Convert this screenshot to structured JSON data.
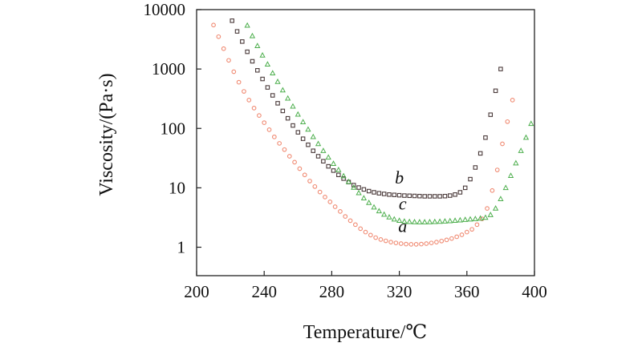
{
  "chart_data": {
    "type": "scatter",
    "xlabel": "Temperature/℃",
    "ylabel": "Viscosity/(Pa·s)",
    "x_scale": "linear",
    "y_scale": "log",
    "xlim": [
      200,
      400
    ],
    "ylim": [
      0.4,
      10000
    ],
    "x_ticks": [
      200,
      240,
      280,
      320,
      360,
      400
    ],
    "x_tick_labels": [
      "200",
      "240",
      "280",
      "320",
      "360",
      "400"
    ],
    "y_ticks": [
      1,
      10,
      100,
      1000,
      10000
    ],
    "y_tick_labels": [
      "1",
      "10",
      "100",
      "1000",
      "10000"
    ],
    "grid": false,
    "legend": "none",
    "series": [
      {
        "name": "a",
        "label": "a",
        "marker": "circle",
        "color": "#f08a72",
        "points": [
          [
            210,
            5500
          ],
          [
            213,
            3500
          ],
          [
            216,
            2200
          ],
          [
            219,
            1400
          ],
          [
            222,
            900
          ],
          [
            225,
            600
          ],
          [
            228,
            420
          ],
          [
            231,
            300
          ],
          [
            234,
            220
          ],
          [
            237,
            165
          ],
          [
            240,
            125
          ],
          [
            243,
            95
          ],
          [
            246,
            72
          ],
          [
            249,
            56
          ],
          [
            252,
            44
          ],
          [
            255,
            34
          ],
          [
            258,
            27
          ],
          [
            261,
            21
          ],
          [
            264,
            16.5
          ],
          [
            267,
            13
          ],
          [
            270,
            10.5
          ],
          [
            273,
            8.5
          ],
          [
            276,
            7
          ],
          [
            279,
            5.8
          ],
          [
            282,
            4.8
          ],
          [
            285,
            4
          ],
          [
            288,
            3.3
          ],
          [
            291,
            2.8
          ],
          [
            294,
            2.4
          ],
          [
            297,
            2.05
          ],
          [
            300,
            1.8
          ],
          [
            303,
            1.6
          ],
          [
            306,
            1.45
          ],
          [
            309,
            1.35
          ],
          [
            312,
            1.28
          ],
          [
            315,
            1.22
          ],
          [
            318,
            1.18
          ],
          [
            321,
            1.15
          ],
          [
            324,
            1.13
          ],
          [
            327,
            1.12
          ],
          [
            330,
            1.12
          ],
          [
            333,
            1.13
          ],
          [
            336,
            1.15
          ],
          [
            339,
            1.18
          ],
          [
            342,
            1.22
          ],
          [
            345,
            1.27
          ],
          [
            348,
            1.33
          ],
          [
            351,
            1.4
          ],
          [
            354,
            1.5
          ],
          [
            357,
            1.62
          ],
          [
            360,
            1.8
          ],
          [
            363,
            2.0
          ],
          [
            366,
            2.4
          ],
          [
            369,
            3.0
          ],
          [
            372,
            4.5
          ],
          [
            375,
            9
          ],
          [
            378,
            20
          ],
          [
            381,
            55
          ],
          [
            384,
            130
          ],
          [
            387,
            300
          ]
        ]
      },
      {
        "name": "b",
        "label": "b",
        "marker": "square",
        "color": "#4a3a3a",
        "points": [
          [
            221,
            6500
          ],
          [
            224,
            4300
          ],
          [
            227,
            2900
          ],
          [
            230,
            1950
          ],
          [
            233,
            1350
          ],
          [
            236,
            950
          ],
          [
            239,
            680
          ],
          [
            242,
            490
          ],
          [
            245,
            360
          ],
          [
            248,
            265
          ],
          [
            251,
            197
          ],
          [
            254,
            148
          ],
          [
            257,
            112
          ],
          [
            260,
            86
          ],
          [
            263,
            67
          ],
          [
            266,
            53
          ],
          [
            269,
            42
          ],
          [
            272,
            34
          ],
          [
            275,
            28
          ],
          [
            278,
            23
          ],
          [
            281,
            19.5
          ],
          [
            284,
            16.5
          ],
          [
            287,
            14.3
          ],
          [
            290,
            12.5
          ],
          [
            293,
            11.1
          ],
          [
            296,
            10.1
          ],
          [
            299,
            9.4
          ],
          [
            302,
            8.8
          ],
          [
            305,
            8.4
          ],
          [
            308,
            8.1
          ],
          [
            311,
            7.9
          ],
          [
            314,
            7.7
          ],
          [
            317,
            7.6
          ],
          [
            320,
            7.5
          ],
          [
            323,
            7.4
          ],
          [
            326,
            7.35
          ],
          [
            329,
            7.3
          ],
          [
            332,
            7.25
          ],
          [
            335,
            7.2
          ],
          [
            338,
            7.2
          ],
          [
            341,
            7.2
          ],
          [
            344,
            7.2
          ],
          [
            347,
            7.25
          ],
          [
            350,
            7.4
          ],
          [
            353,
            7.7
          ],
          [
            356,
            8.4
          ],
          [
            359,
            10
          ],
          [
            362,
            14
          ],
          [
            365,
            22
          ],
          [
            368,
            38
          ],
          [
            371,
            70
          ],
          [
            374,
            170
          ],
          [
            377,
            430
          ],
          [
            380,
            1000
          ]
        ]
      },
      {
        "name": "c",
        "label": "c",
        "marker": "triangle",
        "color": "#4cae4c",
        "points": [
          [
            230,
            5400
          ],
          [
            233,
            3600
          ],
          [
            236,
            2450
          ],
          [
            239,
            1700
          ],
          [
            242,
            1200
          ],
          [
            245,
            850
          ],
          [
            248,
            610
          ],
          [
            251,
            440
          ],
          [
            254,
            320
          ],
          [
            257,
            235
          ],
          [
            260,
            172
          ],
          [
            263,
            128
          ],
          [
            266,
            96
          ],
          [
            269,
            72
          ],
          [
            272,
            55
          ],
          [
            275,
            42
          ],
          [
            278,
            32.5
          ],
          [
            281,
            25.5
          ],
          [
            284,
            20
          ],
          [
            287,
            15.8
          ],
          [
            290,
            12.6
          ],
          [
            293,
            10.1
          ],
          [
            296,
            8.2
          ],
          [
            299,
            6.7
          ],
          [
            302,
            5.6
          ],
          [
            305,
            4.7
          ],
          [
            308,
            4.05
          ],
          [
            311,
            3.55
          ],
          [
            314,
            3.2
          ],
          [
            317,
            2.95
          ],
          [
            320,
            2.8
          ],
          [
            323,
            2.72
          ],
          [
            326,
            2.68
          ],
          [
            329,
            2.66
          ],
          [
            332,
            2.65
          ],
          [
            335,
            2.65
          ],
          [
            338,
            2.66
          ],
          [
            341,
            2.68
          ],
          [
            344,
            2.7
          ],
          [
            347,
            2.73
          ],
          [
            350,
            2.76
          ],
          [
            353,
            2.8
          ],
          [
            356,
            2.85
          ],
          [
            359,
            2.9
          ],
          [
            362,
            2.95
          ],
          [
            365,
            3.0
          ],
          [
            368,
            3.05
          ],
          [
            371,
            3.15
          ],
          [
            374,
            3.5
          ],
          [
            377,
            4.5
          ],
          [
            380,
            6.5
          ],
          [
            383,
            10
          ],
          [
            386,
            16
          ],
          [
            389,
            26
          ],
          [
            392,
            42
          ],
          [
            395,
            70
          ],
          [
            398,
            120
          ]
        ]
      }
    ],
    "annotations": [
      {
        "text": "b",
        "x": 320,
        "y": 11.8
      },
      {
        "text": "c",
        "x": 322,
        "y": 4.3
      },
      {
        "text": "a",
        "x": 322,
        "y": 1.8
      }
    ]
  }
}
